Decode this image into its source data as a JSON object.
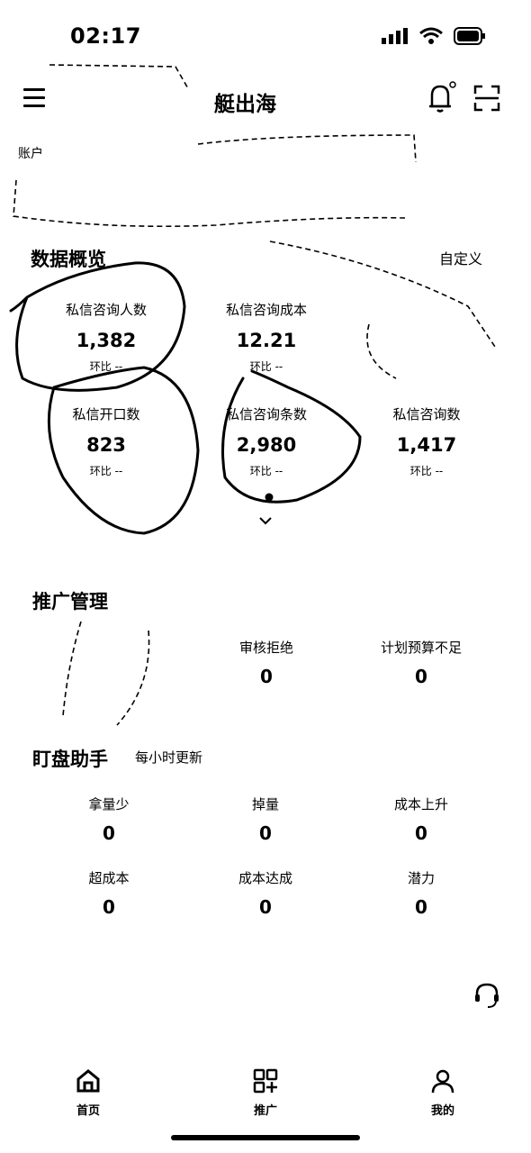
{
  "status_bar": {
    "time": "02:17"
  },
  "header": {
    "title": "艇出海",
    "account_label": "账户"
  },
  "overview": {
    "title": "数据概览",
    "custom_label": "自定义",
    "metrics": [
      {
        "label": "私信咨询人数",
        "value": "1,382",
        "ratio": "环比 --"
      },
      {
        "label": "私信咨询成本",
        "value": "12.21",
        "ratio": "环比 --"
      },
      {
        "label": "私信开口数",
        "value": "823",
        "ratio": "环比 --"
      },
      {
        "label": "私信咨询条数",
        "value": "2,980",
        "ratio": "环比 --"
      },
      {
        "label": "私信咨询数",
        "value": "1,417",
        "ratio": "环比 --"
      }
    ]
  },
  "promotion": {
    "title": "推广管理",
    "items": [
      {
        "label": "审核拒绝",
        "value": "0"
      },
      {
        "label": "计划预算不足",
        "value": "0"
      }
    ]
  },
  "monitor": {
    "title": "盯盘助手",
    "subtitle": "每小时更新",
    "items": [
      {
        "label": "拿量少",
        "value": "0"
      },
      {
        "label": "掉量",
        "value": "0"
      },
      {
        "label": "成本上升",
        "value": "0"
      },
      {
        "label": "超成本",
        "value": "0"
      },
      {
        "label": "成本达成",
        "value": "0"
      },
      {
        "label": "潜力",
        "value": "0"
      }
    ]
  },
  "bottom_nav": [
    {
      "label": "首页",
      "icon": "home-icon"
    },
    {
      "label": "推广",
      "icon": "apps-add-icon"
    },
    {
      "label": "我的",
      "icon": "user-icon"
    }
  ]
}
